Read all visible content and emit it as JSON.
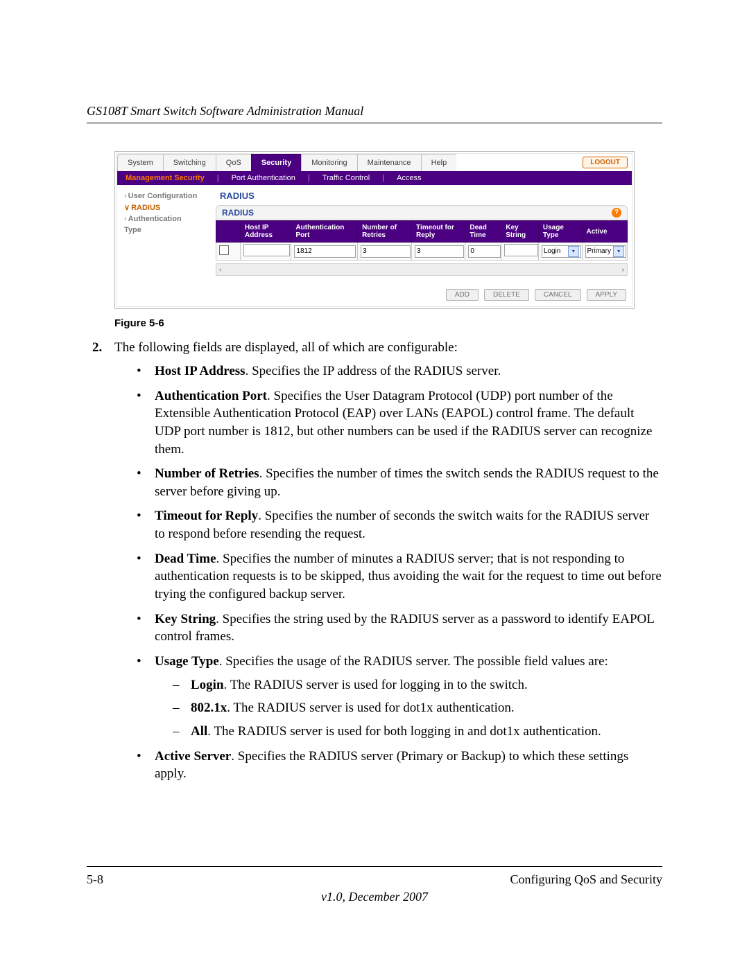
{
  "doc": {
    "title": "GS108T Smart Switch Software Administration Manual",
    "page_label": "5-8",
    "section": "Configuring QoS and Security",
    "version": "v1.0, December 2007"
  },
  "figure_caption": "Figure 5-6",
  "shot": {
    "tabs": [
      "System",
      "Switching",
      "QoS",
      "Security",
      "Monitoring",
      "Maintenance",
      "Help"
    ],
    "active_tab_index": 3,
    "logout": "LOGOUT",
    "subtabs": {
      "items": [
        "Management Security",
        "Port Authentication",
        "Traffic Control",
        "Access"
      ],
      "active_index": 0
    },
    "sidebar": {
      "items": [
        {
          "label": "User Configuration",
          "sel": false,
          "bold": true
        },
        {
          "label": "RADIUS",
          "sel": true,
          "bold": true
        },
        {
          "label": "Authentication",
          "sel": false,
          "bold": true
        },
        {
          "label": "Type",
          "sel": false,
          "bold": true
        }
      ]
    },
    "section_title": "RADIUS",
    "panel_title": "RADIUS",
    "columns": [
      "",
      "Host IP Address",
      "Authentication Port",
      "Number of Retries",
      "Timeout for Reply",
      "Dead Time",
      "Key String",
      "Usage Type",
      "Active"
    ],
    "row": {
      "host_ip": "",
      "auth_port": "1812",
      "retries": "3",
      "timeout": "3",
      "dead_time": "0",
      "key_string": "",
      "usage_type": "Login",
      "active": "Primary"
    },
    "buttons": [
      "ADD",
      "DELETE",
      "CANCEL",
      "APPLY"
    ],
    "colors": {
      "purple": "#4b0082",
      "orange": "#ff7a00",
      "link_blue": "#2a4aa0"
    }
  },
  "text": {
    "num": "2.",
    "intro": "The following fields are displayed, all of which are configurable:",
    "bullets": [
      {
        "term": "Host IP Address",
        "desc": ". Specifies the IP address of the RADIUS server."
      },
      {
        "term": "Authentication Port",
        "desc": ". Specifies the User Datagram Protocol (UDP) port number of the Extensible Authentication Protocol (EAP) over LANs (EAPOL) control frame. The default UDP port number is 1812, but other numbers can be used if the RADIUS server can recognize them."
      },
      {
        "term": "Number of Retries",
        "desc": ". Specifies the number of times the switch sends the RADIUS request to the server before giving up."
      },
      {
        "term": "Timeout for Reply",
        "desc": ". Specifies the number of seconds the switch waits for the RADIUS server to respond before resending the request."
      },
      {
        "term": "Dead Time",
        "desc": ". Specifies the number of minutes a RADIUS server; that is not responding to authentication requests is to be skipped, thus avoiding the wait for the request to time out before trying the configured backup server."
      },
      {
        "term": "Key String",
        "desc": ". Specifies the string used by the RADIUS server as a password to identify EAPOL control frames."
      },
      {
        "term": "Usage Type",
        "desc": ". Specifies the usage of the RADIUS server. The possible field values are:",
        "sub": [
          {
            "term": "Login",
            "desc": ". The RADIUS server is used for logging in to the switch."
          },
          {
            "term": "802.1x",
            "desc": ". The RADIUS server is used for dot1x authentication."
          },
          {
            "term": "All",
            "desc": ". The RADIUS server is used for both logging in and dot1x authentication."
          }
        ]
      },
      {
        "term": "Active Server",
        "desc": ". Specifies the RADIUS server (Primary or Backup) to which these settings apply."
      }
    ]
  }
}
